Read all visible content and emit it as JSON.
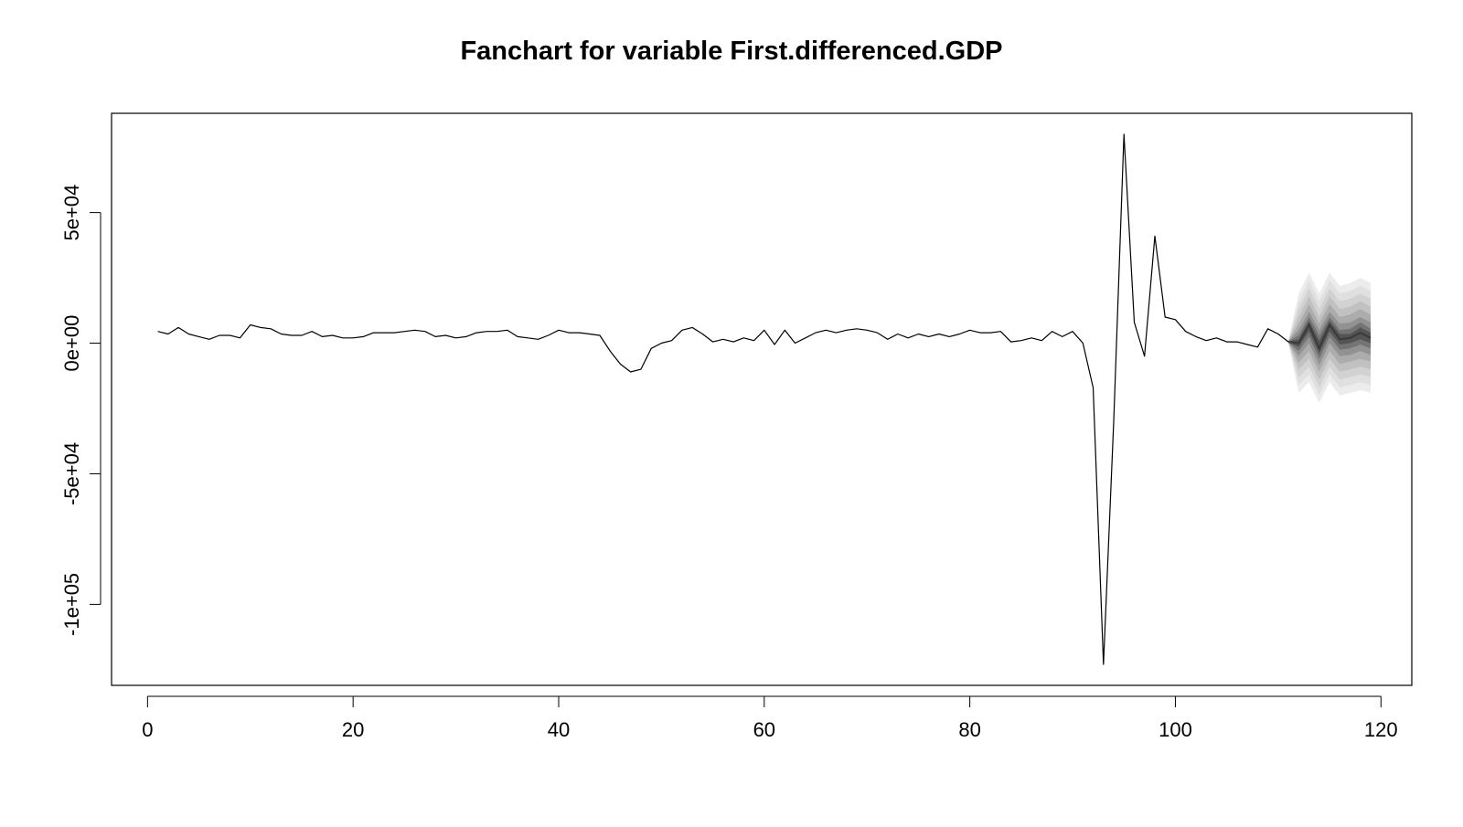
{
  "chart_data": {
    "type": "line",
    "title": "Fanchart for variable First.differenced.GDP",
    "xlabel": "",
    "ylabel": "",
    "xlim": [
      -3.5,
      123
    ],
    "ylim": [
      -131000,
      88000
    ],
    "x_ticks": [
      0,
      20,
      40,
      60,
      80,
      100,
      120
    ],
    "x_tick_labels": [
      "0",
      "20",
      "40",
      "60",
      "80",
      "100",
      "120"
    ],
    "y_ticks": [
      -100000,
      -50000,
      0,
      50000
    ],
    "y_tick_labels": [
      "-1e+05",
      "-5e+04",
      "0e+00",
      "5e+04"
    ],
    "grid": false,
    "legend": "none",
    "series": [
      {
        "x": [
          1,
          2,
          3,
          4,
          5,
          6,
          7,
          8,
          9,
          10,
          11,
          12,
          13,
          14,
          15,
          16,
          17,
          18,
          19,
          20,
          21,
          22,
          23,
          24,
          25,
          26,
          27,
          28,
          29,
          30,
          31,
          32,
          33,
          34,
          35,
          36,
          37,
          38,
          39,
          40,
          41,
          42,
          43,
          44,
          45,
          46,
          47,
          48,
          49,
          50,
          51,
          52,
          53,
          54,
          55,
          56,
          57,
          58,
          59,
          60,
          61,
          62,
          63,
          64,
          65,
          66,
          67,
          68,
          69,
          70,
          71,
          72,
          73,
          74,
          75,
          76,
          77,
          78,
          79,
          80,
          81,
          82,
          83,
          84,
          85,
          86,
          87,
          88,
          89,
          90,
          91,
          92,
          93,
          94,
          95,
          96,
          97,
          98,
          99,
          100,
          101,
          102,
          103,
          104,
          105,
          106,
          107,
          108,
          109,
          110,
          111
        ],
        "values": [
          4500,
          3500,
          6000,
          3500,
          2500,
          1500,
          3000,
          3000,
          2000,
          7000,
          6000,
          5500,
          3500,
          3000,
          3000,
          4500,
          2500,
          3000,
          2000,
          2000,
          2500,
          4000,
          4000,
          4000,
          4500,
          5000,
          4500,
          2500,
          3000,
          2000,
          2500,
          4000,
          4500,
          4500,
          5000,
          2500,
          2000,
          1500,
          3000,
          5000,
          4000,
          4000,
          3500,
          3000,
          -3000,
          -8000,
          -11000,
          -10000,
          -2000,
          0,
          1000,
          5000,
          6000,
          3500,
          500,
          1500,
          500,
          2000,
          1000,
          5000,
          -500,
          5000,
          0,
          2000,
          4000,
          5000,
          4000,
          5000,
          5500,
          5000,
          4000,
          1500,
          3500,
          2000,
          3500,
          2500,
          3500,
          2500,
          3500,
          5000,
          4000,
          4000,
          4500,
          500,
          1000,
          2000,
          1000,
          4500,
          2500,
          4500,
          0,
          -17000,
          -123000,
          -30000,
          80000,
          8000,
          -5000,
          41000,
          10000,
          9000,
          4500,
          2500,
          1000,
          2000,
          500,
          500,
          -500,
          -1500,
          5500,
          3500,
          500
        ]
      }
    ],
    "fan": {
      "x": [
        111,
        112,
        113,
        114,
        115,
        116,
        117,
        118,
        119
      ],
      "median": [
        500,
        0,
        7000,
        -2000,
        7000,
        1500,
        2000,
        4000,
        2000
      ],
      "bands": [
        {
          "lower": [
            0,
            -19000,
            -15000,
            -23000,
            -15000,
            -20000,
            -19000,
            -18000,
            -19000
          ],
          "upper": [
            1000,
            19000,
            27000,
            19000,
            27000,
            22000,
            23000,
            25000,
            23000
          ],
          "color": "#ececec"
        },
        {
          "lower": [
            0,
            -16000,
            -12000,
            -20000,
            -12000,
            -17000,
            -16000,
            -15000,
            -16000
          ],
          "upper": [
            1000,
            16000,
            24000,
            16000,
            24000,
            19000,
            20000,
            22000,
            20000
          ],
          "color": "#e0e0e0"
        },
        {
          "lower": [
            0,
            -13000,
            -9000,
            -17000,
            -9000,
            -14000,
            -13000,
            -12000,
            -13000
          ],
          "upper": [
            1000,
            13000,
            21000,
            13000,
            21000,
            16000,
            17000,
            19000,
            17000
          ],
          "color": "#d2d2d2"
        },
        {
          "lower": [
            100,
            -10000,
            -6000,
            -14000,
            -6000,
            -11000,
            -10000,
            -9000,
            -10000
          ],
          "upper": [
            900,
            10000,
            18000,
            10000,
            18000,
            13000,
            14000,
            16000,
            14000
          ],
          "color": "#c1c1c1"
        },
        {
          "lower": [
            200,
            -7500,
            -3000,
            -11000,
            -3000,
            -8000,
            -7000,
            -6000,
            -7000
          ],
          "upper": [
            800,
            7500,
            15000,
            7500,
            15000,
            10000,
            11000,
            13000,
            11000
          ],
          "color": "#acacac"
        },
        {
          "lower": [
            250,
            -5000,
            0,
            -8500,
            0,
            -5000,
            -4500,
            -3000,
            -4500
          ],
          "upper": [
            750,
            5000,
            12000,
            5000,
            12000,
            7500,
            8000,
            10000,
            8000
          ],
          "color": "#929292"
        },
        {
          "lower": [
            300,
            -3000,
            2500,
            -6000,
            2500,
            -2500,
            -2000,
            -500,
            -2000
          ],
          "upper": [
            700,
            3000,
            10000,
            3000,
            10000,
            5000,
            5500,
            8000,
            5500
          ],
          "color": "#747474"
        },
        {
          "lower": [
            400,
            -1500,
            4500,
            -4000,
            4500,
            -500,
            0,
            1500,
            0
          ],
          "upper": [
            600,
            1500,
            8500,
            1000,
            8500,
            3500,
            3500,
            6000,
            4000
          ],
          "color": "#545454"
        }
      ]
    }
  }
}
